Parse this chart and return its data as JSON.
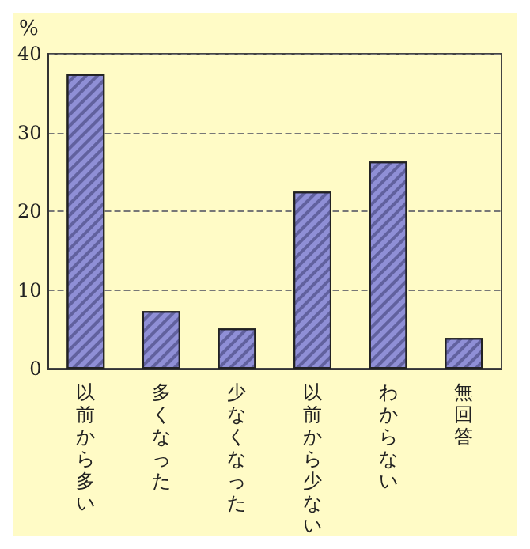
{
  "chart_data": {
    "type": "bar",
    "ylabel": "%",
    "categories": [
      "以前から多い",
      "多くなった",
      "少なくなった",
      "以前から少ない",
      "わからない",
      "無回答"
    ],
    "values": [
      37.4,
      7.3,
      5.1,
      22.5,
      26.3,
      3.9
    ],
    "color": "#8f8fd6",
    "ylim": [
      0,
      40
    ],
    "yticks": [
      0,
      10,
      20,
      30,
      40
    ],
    "grid": "y"
  }
}
